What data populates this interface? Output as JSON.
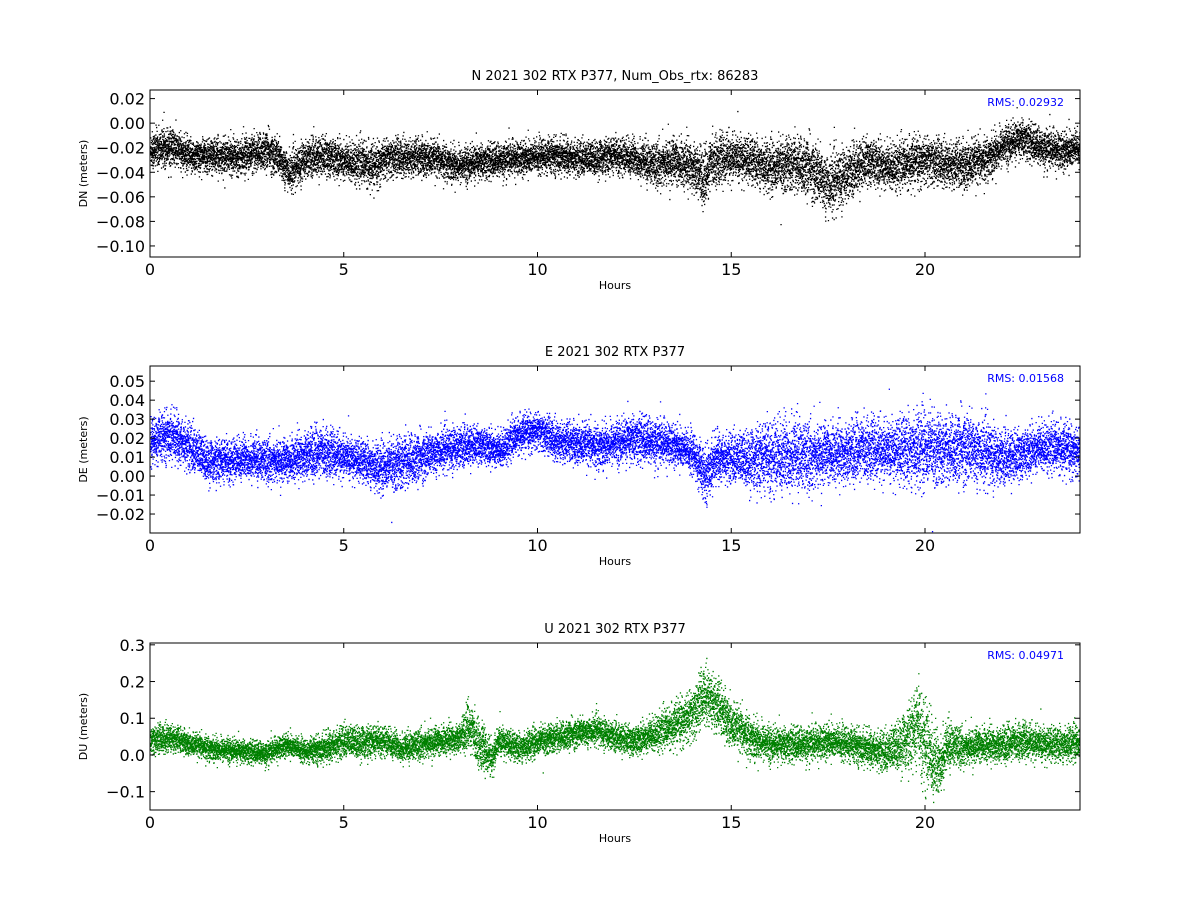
{
  "chart_data": [
    {
      "type": "scatter",
      "title": "N 2021 302 RTX  P377, Num_Obs_rtx: 86283",
      "xlabel": "Hours",
      "ylabel": "DN (meters)",
      "xlim": [
        0,
        24
      ],
      "ylim": [
        -0.109,
        0.027
      ],
      "xticks": [
        0,
        5,
        10,
        15,
        20
      ],
      "yticks": [
        -0.1,
        -0.08,
        -0.06,
        -0.04,
        -0.02,
        0.0,
        0.02
      ],
      "ytick_labels": [
        "−0.10",
        "−0.08",
        "−0.06",
        "−0.04",
        "−0.02",
        "0.00",
        "0.02"
      ],
      "color": "#000000",
      "rms_label": "RMS:  0.02932",
      "rms_color": "#0000ff",
      "grid": false,
      "series": [
        {
          "x": [
            0,
            0.5,
            1,
            1.5,
            2,
            2.5,
            3,
            3.3,
            3.6,
            4,
            4.5,
            5,
            5.5,
            5.8,
            6,
            6.5,
            7,
            7.5,
            8,
            8.5,
            9,
            9.5,
            10,
            10.5,
            11,
            11.5,
            12,
            12.5,
            13,
            13.5,
            14,
            14.3,
            14.5,
            15,
            15.5,
            16,
            16.5,
            17,
            17.5,
            18,
            18.5,
            19,
            19.5,
            20,
            20.5,
            21,
            21.5,
            22,
            22.5,
            23,
            23.5,
            24
          ],
          "y": [
            -0.022,
            -0.018,
            -0.027,
            -0.026,
            -0.027,
            -0.025,
            -0.022,
            -0.028,
            -0.04,
            -0.028,
            -0.026,
            -0.03,
            -0.032,
            -0.036,
            -0.029,
            -0.027,
            -0.028,
            -0.03,
            -0.034,
            -0.031,
            -0.03,
            -0.028,
            -0.027,
            -0.026,
            -0.028,
            -0.028,
            -0.026,
            -0.028,
            -0.034,
            -0.031,
            -0.034,
            -0.045,
            -0.03,
            -0.028,
            -0.03,
            -0.035,
            -0.032,
            -0.036,
            -0.05,
            -0.04,
            -0.03,
            -0.035,
            -0.033,
            -0.03,
            -0.032,
            -0.035,
            -0.03,
            -0.018,
            -0.012,
            -0.02,
            -0.022,
            -0.02
          ],
          "spread": [
            0.01,
            0.01,
            0.009,
            0.009,
            0.009,
            0.009,
            0.01,
            0.01,
            0.01,
            0.01,
            0.01,
            0.01,
            0.011,
            0.011,
            0.01,
            0.01,
            0.01,
            0.009,
            0.009,
            0.009,
            0.009,
            0.009,
            0.009,
            0.009,
            0.009,
            0.009,
            0.009,
            0.01,
            0.011,
            0.012,
            0.013,
            0.014,
            0.013,
            0.012,
            0.012,
            0.013,
            0.014,
            0.015,
            0.016,
            0.014,
            0.012,
            0.012,
            0.012,
            0.012,
            0.012,
            0.013,
            0.011,
            0.01,
            0.01,
            0.01,
            0.01,
            0.01
          ]
        }
      ]
    },
    {
      "type": "scatter",
      "title": "E 2021 302 RTX  P377",
      "xlabel": "Hours",
      "ylabel": "DE (meters)",
      "xlim": [
        0,
        24
      ],
      "ylim": [
        -0.03,
        0.058
      ],
      "xticks": [
        0,
        5,
        10,
        15,
        20
      ],
      "yticks": [
        -0.02,
        -0.01,
        0.0,
        0.01,
        0.02,
        0.03,
        0.04,
        0.05
      ],
      "ytick_labels": [
        "−0.02",
        "−0.01",
        "0.00",
        "0.01",
        "0.02",
        "0.03",
        "0.04",
        "0.05"
      ],
      "color": "#0000ff",
      "rms_label": "RMS:  0.01568",
      "rms_color": "#0000ff",
      "grid": false,
      "series": [
        {
          "x": [
            0,
            0.5,
            1,
            1.5,
            2,
            2.5,
            3,
            3.5,
            4,
            4.5,
            5,
            5.5,
            5.9,
            6.5,
            7,
            7.5,
            8,
            8.5,
            9,
            9.5,
            10,
            10.5,
            11,
            11.5,
            12,
            12.5,
            13,
            13.5,
            14,
            14.3,
            14.6,
            15,
            15.5,
            16,
            16.5,
            17,
            17.5,
            18,
            18.5,
            19,
            19.5,
            20,
            20.5,
            21,
            21.5,
            22,
            22.5,
            23,
            23.5,
            24
          ],
          "y": [
            0.018,
            0.022,
            0.016,
            0.008,
            0.008,
            0.01,
            0.008,
            0.008,
            0.012,
            0.013,
            0.01,
            0.008,
            0.005,
            0.008,
            0.01,
            0.014,
            0.016,
            0.017,
            0.014,
            0.022,
            0.024,
            0.019,
            0.017,
            0.016,
            0.018,
            0.02,
            0.018,
            0.017,
            0.012,
            0.0,
            0.01,
            0.01,
            0.009,
            0.01,
            0.012,
            0.01,
            0.012,
            0.013,
            0.015,
            0.013,
            0.014,
            0.016,
            0.014,
            0.015,
            0.013,
            0.01,
            0.012,
            0.016,
            0.015,
            0.012
          ],
          "spread": [
            0.008,
            0.008,
            0.008,
            0.007,
            0.007,
            0.007,
            0.007,
            0.007,
            0.008,
            0.008,
            0.007,
            0.007,
            0.008,
            0.009,
            0.008,
            0.007,
            0.007,
            0.006,
            0.006,
            0.006,
            0.006,
            0.007,
            0.007,
            0.007,
            0.007,
            0.008,
            0.008,
            0.007,
            0.007,
            0.009,
            0.008,
            0.008,
            0.01,
            0.012,
            0.013,
            0.011,
            0.01,
            0.01,
            0.01,
            0.01,
            0.012,
            0.013,
            0.011,
            0.012,
            0.011,
            0.009,
            0.008,
            0.008,
            0.008,
            0.008
          ]
        }
      ]
    },
    {
      "type": "scatter",
      "title": "U 2021 302 RTX  P377",
      "xlabel": "Hours",
      "ylabel": "DU (meters)",
      "xlim": [
        0,
        24
      ],
      "ylim": [
        -0.15,
        0.305
      ],
      "xticks": [
        0,
        5,
        10,
        15,
        20
      ],
      "yticks": [
        -0.1,
        0.0,
        0.1,
        0.2,
        0.3
      ],
      "ytick_labels": [
        "−0.1",
        "0.0",
        "0.1",
        "0.2",
        "0.3"
      ],
      "color": "#008000",
      "rms_label": "RMS:  0.04971",
      "rms_color": "#0000ff",
      "grid": false,
      "series": [
        {
          "x": [
            0,
            0.5,
            1,
            1.5,
            2,
            2.5,
            3,
            3.5,
            4,
            4.5,
            5,
            5.5,
            6,
            6.5,
            7,
            7.5,
            8,
            8.2,
            8.5,
            8.8,
            9,
            9.5,
            10,
            10.5,
            11,
            11.5,
            12,
            12.5,
            13,
            13.5,
            14,
            14.3,
            14.6,
            15,
            15.5,
            16,
            16.5,
            17,
            17.5,
            18,
            18.5,
            19,
            19.5,
            19.8,
            20,
            20.3,
            20.6,
            21,
            21.5,
            22,
            22.5,
            23,
            23.5,
            24
          ],
          "y": [
            0.04,
            0.05,
            0.03,
            0.02,
            0.015,
            0.01,
            0.005,
            0.03,
            0.01,
            0.02,
            0.04,
            0.035,
            0.04,
            0.02,
            0.03,
            0.04,
            0.05,
            0.08,
            0.03,
            -0.01,
            0.04,
            0.02,
            0.04,
            0.05,
            0.06,
            0.07,
            0.05,
            0.04,
            0.06,
            0.08,
            0.11,
            0.17,
            0.14,
            0.08,
            0.05,
            0.03,
            0.03,
            0.03,
            0.04,
            0.03,
            0.02,
            0.01,
            0.04,
            0.08,
            0.03,
            -0.03,
            0.03,
            0.02,
            0.03,
            0.03,
            0.04,
            0.03,
            0.03,
            0.04
          ],
          "spread": [
            0.025,
            0.025,
            0.02,
            0.02,
            0.02,
            0.02,
            0.02,
            0.02,
            0.02,
            0.025,
            0.028,
            0.028,
            0.025,
            0.025,
            0.025,
            0.025,
            0.025,
            0.04,
            0.04,
            0.03,
            0.025,
            0.025,
            0.025,
            0.025,
            0.025,
            0.025,
            0.025,
            0.025,
            0.03,
            0.035,
            0.045,
            0.05,
            0.05,
            0.04,
            0.035,
            0.03,
            0.03,
            0.03,
            0.03,
            0.03,
            0.03,
            0.035,
            0.05,
            0.07,
            0.08,
            0.06,
            0.04,
            0.03,
            0.03,
            0.03,
            0.03,
            0.03,
            0.03,
            0.03
          ]
        }
      ]
    }
  ]
}
